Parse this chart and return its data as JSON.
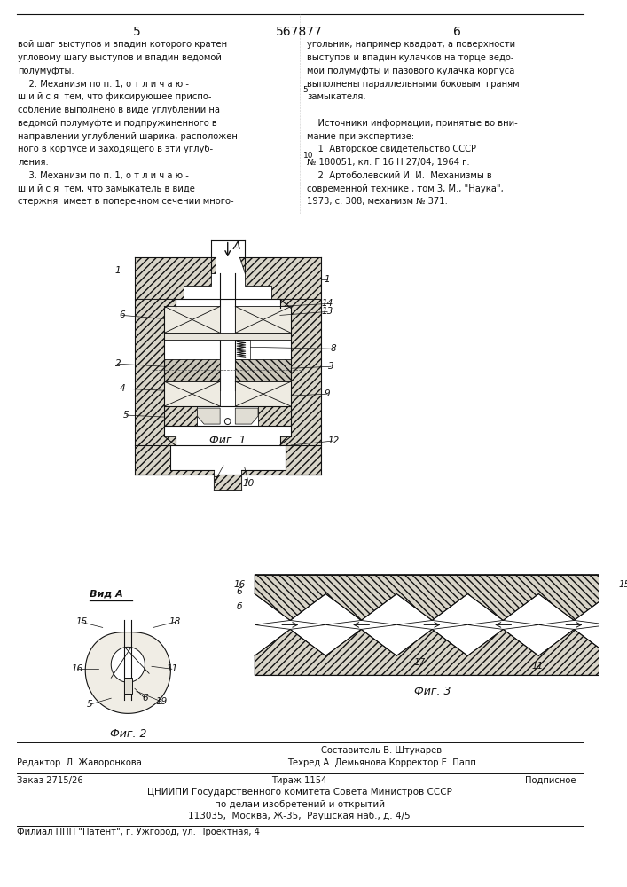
{
  "page_width": 7.07,
  "page_height": 10.0,
  "bg_color": "#ffffff",
  "patent_number": "567877",
  "left_column_text": [
    "вой шаг выступов и впадин которого кратен",
    "угловому шагу выступов и впадин ведомой",
    "полумуфты.",
    "    2. Механизм по п. 1, о т л и ч а ю -",
    "ш и й с я  тем, что фиксирующее приспо-",
    "собление выполнено в виде углублений на",
    "ведомой полумуфте и подпружиненного в",
    "направлении углублений шарика, расположен-",
    "ного в корпусе и заходящего в эти углуб-",
    "ления.",
    "    3. Механизм по п. 1, о т л и ч а ю -",
    "ш и й с я  тем, что замыкатель в виде",
    "стержня  имеет в поперечном сечении много-"
  ],
  "right_column_text": [
    "угольник, например квадрат, а поверхности",
    "выступов и впадин кулачков на торце ведо-",
    "мой полумуфты и пазового кулачка корпуса",
    "выполнены параллельными боковым  граням",
    "замыкателя.",
    "",
    "    Источники информации, принятые во вни-",
    "мание при экспертизе:",
    "    1. Авторское свидетельство СССР",
    "№ 180051, кл. F 16 H 27/04, 1964 г.",
    "    2. Артоболевский И. И.  Механизмы в",
    "современной технике , том 3, М., \"Наука\",",
    "1973, с. 308, механизм № 371."
  ],
  "bottom_text_sestavitel": "Составитель В. Штукарев",
  "bottom_text_tehred": "Техред А. Демьянова Корректор Е. Папп",
  "bottom_text_redaktor": "Редактор  Л. Жаворонкова",
  "bottom_text_podpisnoe": "Подписное",
  "bottom_text_zakaz": "Заказ 2715/26",
  "bottom_text_tirazh": "Тираж 1154",
  "bottom_text_tsniipи": "ЦНИИПИ Государственного комитета Совета Министров СССР",
  "bottom_text_po_delam": "по делам изобретений и открытий",
  "bottom_text_address": "113035,  Москва, Ж-35,  Раушская наб., д. 4/5",
  "bottom_text_filial": "Филиал ППП \"Патент\", г. Ужгород, ул. Проектная, 4",
  "fig1_label": "Фиг. 1",
  "fig2_label": "Фиг. 2",
  "fig3_label": "Фиг. 3",
  "vida_label": "Вид А",
  "arrow_label": "А"
}
